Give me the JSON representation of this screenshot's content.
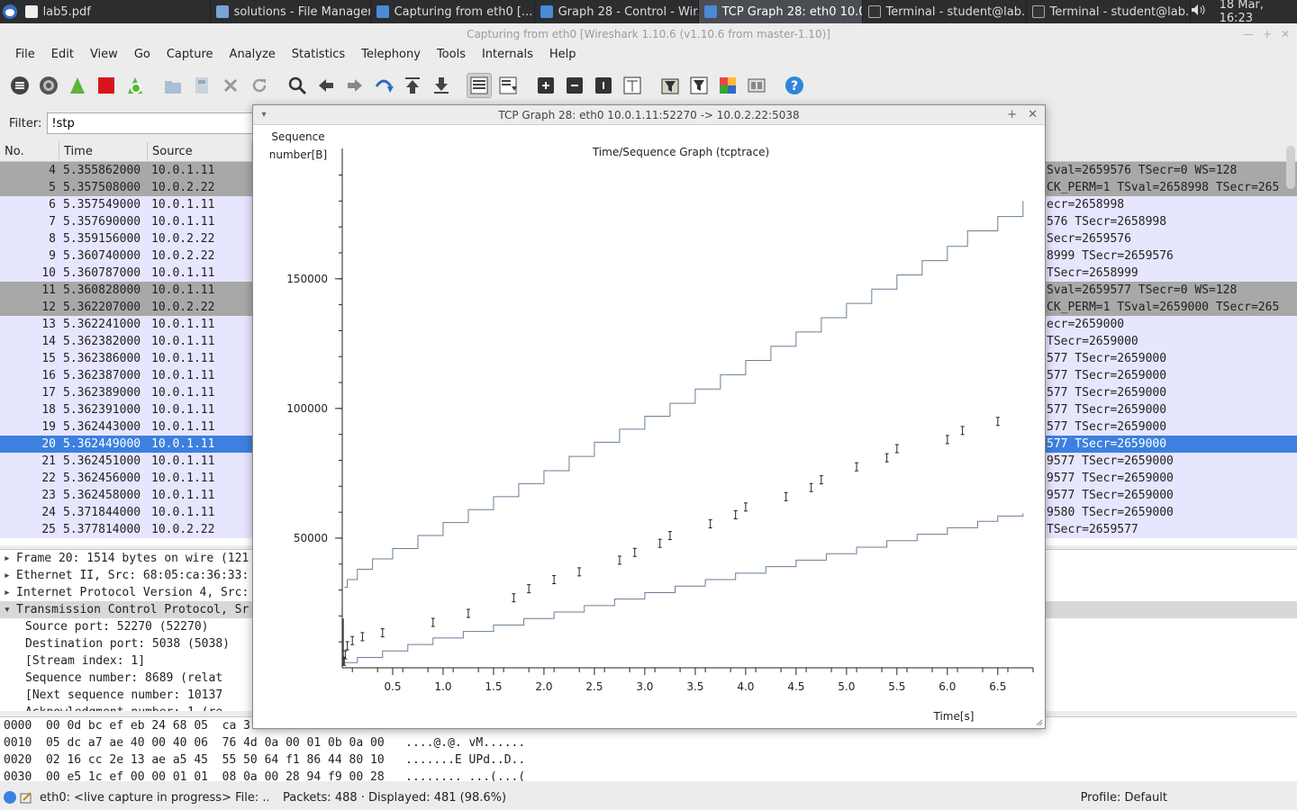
{
  "taskbar": {
    "tasks": [
      {
        "label": "lab5.pdf",
        "icon": "document-icon"
      },
      {
        "label": "solutions - File Manager",
        "icon": "folder-icon"
      },
      {
        "label": "Capturing from eth0   [...",
        "icon": "wireshark-icon"
      },
      {
        "label": "Graph 28 - Control - Wir...",
        "icon": "wireshark-icon"
      },
      {
        "label": "TCP Graph 28: eth0 10.0...",
        "icon": "wireshark-icon"
      },
      {
        "label": "Terminal - student@lab...",
        "icon": "terminal-icon"
      },
      {
        "label": "Terminal - student@lab...",
        "icon": "terminal-icon"
      }
    ],
    "clock": "18 Mar, 16:23",
    "volume_icon": "speaker-icon"
  },
  "main_window": {
    "title": "Capturing from eth0   [Wireshark 1.10.6  (v1.10.6 from master-1.10)]",
    "menu": [
      "File",
      "Edit",
      "View",
      "Go",
      "Capture",
      "Analyze",
      "Statistics",
      "Telephony",
      "Tools",
      "Internals",
      "Help"
    ],
    "toolbar_icons": [
      "interfaces-icon",
      "options-icon",
      "start-capture-icon",
      "stop-capture-icon",
      "restart-capture-icon",
      "open-file-icon",
      "save-file-icon",
      "close-file-icon",
      "reload-icon",
      "find-icon",
      "back-icon",
      "forward-icon",
      "goto-icon",
      "first-packet-icon",
      "last-packet-icon",
      "colorize-icon",
      "autoscroll-icon",
      "zoom-in-icon",
      "zoom-out-icon",
      "normal-size-icon",
      "resize-columns-icon",
      "capture-filters-icon",
      "display-filters-icon",
      "coloring-rules-icon",
      "preferences-icon",
      "help-icon"
    ],
    "filter": {
      "label": "Filter:",
      "value": "!stp"
    },
    "columns": [
      "No.",
      "Time",
      "Source"
    ],
    "packets": [
      {
        "no": "4",
        "time": "5.355862000",
        "src": "10.0.1.11",
        "info": "Sval=2659576 TSecr=0 WS=128",
        "style": "dark"
      },
      {
        "no": "5",
        "time": "5.357508000",
        "src": "10.0.2.22",
        "info": "CK_PERM=1 TSval=2658998 TSecr=265",
        "style": "dark"
      },
      {
        "no": "6",
        "time": "5.357549000",
        "src": "10.0.1.11",
        "info": "ecr=2658998",
        "style": "light"
      },
      {
        "no": "7",
        "time": "5.357690000",
        "src": "10.0.1.11",
        "info": "576 TSecr=2658998",
        "style": "light"
      },
      {
        "no": "8",
        "time": "5.359156000",
        "src": "10.0.2.22",
        "info": "Secr=2659576",
        "style": "light"
      },
      {
        "no": "9",
        "time": "5.360740000",
        "src": "10.0.2.22",
        "info": "8999 TSecr=2659576",
        "style": "light"
      },
      {
        "no": "10",
        "time": "5.360787000",
        "src": "10.0.1.11",
        "info": "TSecr=2658999",
        "style": "light"
      },
      {
        "no": "11",
        "time": "5.360828000",
        "src": "10.0.1.11",
        "info": "Sval=2659577 TSecr=0 WS=128",
        "style": "dark"
      },
      {
        "no": "12",
        "time": "5.362207000",
        "src": "10.0.2.22",
        "info": "CK_PERM=1 TSval=2659000 TSecr=265",
        "style": "dark"
      },
      {
        "no": "13",
        "time": "5.362241000",
        "src": "10.0.1.11",
        "info": "ecr=2659000",
        "style": "light"
      },
      {
        "no": "14",
        "time": "5.362382000",
        "src": "10.0.1.11",
        "info": " TSecr=2659000",
        "style": "light"
      },
      {
        "no": "15",
        "time": "5.362386000",
        "src": "10.0.1.11",
        "info": "577 TSecr=2659000",
        "style": "light"
      },
      {
        "no": "16",
        "time": "5.362387000",
        "src": "10.0.1.11",
        "info": "577 TSecr=2659000",
        "style": "light"
      },
      {
        "no": "17",
        "time": "5.362389000",
        "src": "10.0.1.11",
        "info": "577 TSecr=2659000",
        "style": "light"
      },
      {
        "no": "18",
        "time": "5.362391000",
        "src": "10.0.1.11",
        "info": "577 TSecr=2659000",
        "style": "light"
      },
      {
        "no": "19",
        "time": "5.362443000",
        "src": "10.0.1.11",
        "info": "577 TSecr=2659000",
        "style": "light"
      },
      {
        "no": "20",
        "time": "5.362449000",
        "src": "10.0.1.11",
        "info": "577 TSecr=2659000",
        "style": "sel"
      },
      {
        "no": "21",
        "time": "5.362451000",
        "src": "10.0.1.11",
        "info": "9577 TSecr=2659000",
        "style": "light"
      },
      {
        "no": "22",
        "time": "5.362456000",
        "src": "10.0.1.11",
        "info": "9577 TSecr=2659000",
        "style": "light"
      },
      {
        "no": "23",
        "time": "5.362458000",
        "src": "10.0.1.11",
        "info": "9577 TSecr=2659000",
        "style": "light"
      },
      {
        "no": "24",
        "time": "5.371844000",
        "src": "10.0.1.11",
        "info": "9580 TSecr=2659000",
        "style": "light"
      },
      {
        "no": "25",
        "time": "5.377814000",
        "src": "10.0.2.22",
        "info": " TSecr=2659577",
        "style": "light"
      }
    ],
    "details": [
      {
        "text": "Frame 20: 1514 bytes on wire (121",
        "kind": "collapsed"
      },
      {
        "text": "Ethernet II, Src: 68:05:ca:36:33:",
        "kind": "collapsed"
      },
      {
        "text": "Internet Protocol Version 4, Src:",
        "kind": "collapsed"
      },
      {
        "text": "Transmission Control Protocol, Sr",
        "kind": "expanded"
      },
      {
        "text": "Source port: 52270 (52270)",
        "kind": "sub"
      },
      {
        "text": "Destination port: 5038 (5038)",
        "kind": "sub"
      },
      {
        "text": "[Stream index: 1]",
        "kind": "sub"
      },
      {
        "text": "Sequence number: 8689    (relat",
        "kind": "sub"
      },
      {
        "text": "[Next sequence number: 10137",
        "kind": "sub"
      },
      {
        "text": "Acknowledgment number: 1    (re",
        "kind": "sub"
      }
    ],
    "hex": [
      "0000  00 0d bc ef eb 24 68 05  ca 3",
      "0010  05 dc a7 ae 40 00 40 06  76 4d 0a 00 01 0b 0a 00   ....@.@. vM......",
      "0020  02 16 cc 2e 13 ae a5 45  55 50 64 f1 86 44 80 10   .......E UPd..D..",
      "0030  00 e5 1c ef 00 00 01 01  08 0a 00 28 94 f9 00 28   ........ ...(...("
    ],
    "status": {
      "capture": "eth0: <live capture in progress> File: ...",
      "packets": "Packets: 488 · Displayed: 481 (98.6%)",
      "profile": "Profile: Default"
    }
  },
  "graph_window": {
    "title": "TCP Graph 28: eth0 10.0.1.11:52270 -> 10.0.2.22:5038",
    "menu_icon": "window-menu-icon",
    "buttons": [
      "maximize-icon",
      "close-icon"
    ]
  },
  "chart_data": {
    "type": "line",
    "title": "Time/Sequence Graph (tcptrace)",
    "ylabel_lines": [
      "Sequence",
      "number[B]"
    ],
    "xlabel": "Time[s]",
    "x_ticks": [
      "0.5",
      "1.0",
      "1.5",
      "2.0",
      "2.5",
      "3.0",
      "3.5",
      "4.0",
      "4.5",
      "5.0",
      "5.5",
      "6.0",
      "6.5"
    ],
    "y_ticks": [
      "50000",
      "100000",
      "150000"
    ],
    "x_range": [
      0,
      6.85
    ],
    "y_range": [
      0,
      194000
    ],
    "series": [
      {
        "role": "receive-window",
        "color": "#6a7f96",
        "points": [
          [
            0.02,
            31000
          ],
          [
            0.05,
            34000
          ],
          [
            0.15,
            38000
          ],
          [
            0.3,
            42000
          ],
          [
            0.5,
            46000
          ],
          [
            0.75,
            51000
          ],
          [
            1.0,
            56000
          ],
          [
            1.25,
            61000
          ],
          [
            1.5,
            66000
          ],
          [
            1.75,
            71000
          ],
          [
            2.0,
            76000
          ],
          [
            2.25,
            81500
          ],
          [
            2.5,
            87000
          ],
          [
            2.75,
            92000
          ],
          [
            3.0,
            97000
          ],
          [
            3.25,
            102000
          ],
          [
            3.5,
            107500
          ],
          [
            3.75,
            113000
          ],
          [
            4.0,
            118500
          ],
          [
            4.25,
            124000
          ],
          [
            4.5,
            129500
          ],
          [
            4.75,
            135000
          ],
          [
            5.0,
            140500
          ],
          [
            5.25,
            146000
          ],
          [
            5.5,
            151500
          ],
          [
            5.75,
            157000
          ],
          [
            6.0,
            162500
          ],
          [
            6.2,
            168500
          ],
          [
            6.5,
            174000
          ],
          [
            6.75,
            180000
          ]
        ]
      },
      {
        "role": "ack",
        "color": "#6a7f96",
        "points": [
          [
            0.0,
            2000
          ],
          [
            0.15,
            4000
          ],
          [
            0.4,
            6500
          ],
          [
            0.65,
            9000
          ],
          [
            0.9,
            11500
          ],
          [
            1.2,
            14000
          ],
          [
            1.5,
            16500
          ],
          [
            1.8,
            19000
          ],
          [
            2.1,
            21500
          ],
          [
            2.4,
            24000
          ],
          [
            2.7,
            26500
          ],
          [
            3.0,
            29000
          ],
          [
            3.3,
            31500
          ],
          [
            3.6,
            34000
          ],
          [
            3.9,
            36500
          ],
          [
            4.2,
            39000
          ],
          [
            4.5,
            41500
          ],
          [
            4.8,
            44000
          ],
          [
            5.1,
            46500
          ],
          [
            5.4,
            49000
          ],
          [
            5.7,
            51500
          ],
          [
            6.0,
            54000
          ],
          [
            6.3,
            56500
          ],
          [
            6.5,
            58500
          ],
          [
            6.75,
            59500
          ]
        ]
      },
      {
        "role": "data-segments",
        "color": "#222222",
        "points": [
          [
            0.02,
            2500
          ],
          [
            0.03,
            5000
          ],
          [
            0.05,
            8500
          ],
          [
            0.1,
            10500
          ],
          [
            0.2,
            12000
          ],
          [
            0.4,
            13500
          ],
          [
            0.9,
            17500
          ],
          [
            1.25,
            21000
          ],
          [
            1.7,
            27000
          ],
          [
            1.85,
            30500
          ],
          [
            2.1,
            34000
          ],
          [
            2.35,
            37000
          ],
          [
            2.75,
            41500
          ],
          [
            2.9,
            44500
          ],
          [
            3.15,
            48000
          ],
          [
            3.25,
            51000
          ],
          [
            3.65,
            55500
          ],
          [
            3.9,
            59000
          ],
          [
            4.0,
            62000
          ],
          [
            4.4,
            66000
          ],
          [
            4.65,
            69500
          ],
          [
            4.75,
            72500
          ],
          [
            5.1,
            77500
          ],
          [
            5.4,
            81000
          ],
          [
            5.5,
            84500
          ],
          [
            6.0,
            88000
          ],
          [
            6.15,
            91500
          ],
          [
            6.5,
            95000
          ]
        ]
      }
    ]
  }
}
